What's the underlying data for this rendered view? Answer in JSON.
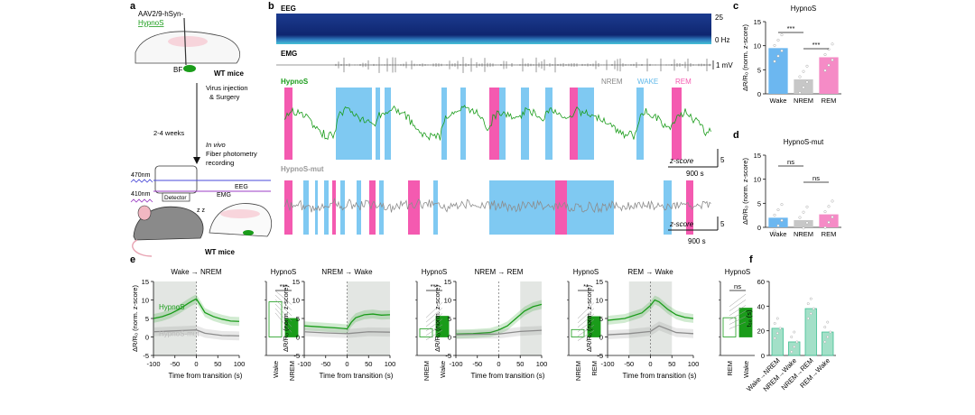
{
  "panel_letters": {
    "a": "a",
    "b": "b",
    "c": "c",
    "d": "d",
    "e": "e",
    "f": "f"
  },
  "panel_a": {
    "virus": "AAV2/9-hSyn-",
    "sensor": "HypnoS",
    "region": "BF",
    "mouse_top": "WT mice",
    "step1": "Virus injection",
    "step1b": "& Surgery",
    "duration": "2-4 weeks",
    "invivo": "In vivo",
    "fp1": "Fiber photometry",
    "fp2": "recording",
    "laser1": "470nm",
    "laser2": "410nm",
    "detector": "Detector",
    "eeg": "EEG",
    "emg": "EMG",
    "zz": "z z",
    "mouse_bottom": "WT mice"
  },
  "panel_b": {
    "eeg_label": "EEG",
    "eeg_top": "25",
    "eeg_bottom": "0 Hz",
    "emg_label": "EMG",
    "emg_scale": "1 mV",
    "hypnos_label": "HypnoS",
    "mut_label": "HypnoS-mut",
    "legend": [
      "NREM",
      "WAKE",
      "REM"
    ],
    "zscore": "z-score",
    "zscale": "5",
    "tscale": "900 s",
    "zscore2": "z-score",
    "zscale2": "5",
    "tscale2": "900 s"
  },
  "colors": {
    "wake": "#7fc9f2",
    "nrem": "#c7c7c7",
    "rem": "#f45ab0",
    "green": "#1a9c1a",
    "gray": "#8c8c8c",
    "wake_bar": "#6cb7f0",
    "rem_bar": "#f58bc6",
    "f_bar": "#a3e0c8",
    "f_edge": "#3fbf93"
  },
  "chart_data": [
    {
      "type": "bar",
      "panel": "c",
      "title": "HypnoS",
      "categories": [
        "Wake",
        "NREM",
        "REM"
      ],
      "values": [
        9.5,
        3.0,
        7.6
      ],
      "ylabel": "ΔR/R₀ (norm. z-score)",
      "ylim": [
        0,
        15
      ],
      "yticks": [
        "0",
        "5",
        "10",
        "15"
      ],
      "significance": [
        "***",
        "***"
      ]
    },
    {
      "type": "bar",
      "panel": "d",
      "title": "HypnoS-mut",
      "categories": [
        "Wake",
        "NREM",
        "REM"
      ],
      "values": [
        2.0,
        1.5,
        2.7
      ],
      "ylabel": "ΔR/R₀ (norm. z-score)",
      "ylim": [
        0,
        15
      ],
      "yticks": [
        "0",
        "5",
        "10",
        "15"
      ],
      "significance": [
        "ns",
        "ns"
      ]
    },
    {
      "type": "line",
      "panel": "e1",
      "title": "Wake → NREM",
      "xlabel": "Time from transition (s)",
      "ylabel": "ΔR/R₀ (norm. z-score)",
      "xlim": [
        -100,
        100
      ],
      "ylim": [
        -5,
        15
      ],
      "xticks": [
        "-100",
        "-50",
        "0",
        "50",
        "100"
      ],
      "yticks": [
        "-5",
        "0",
        "5",
        "10",
        "15"
      ],
      "series": [
        {
          "name": "HypnoS",
          "x": [
            -100,
            -80,
            -60,
            -40,
            -20,
            -10,
            0,
            10,
            20,
            40,
            60,
            80,
            100
          ],
          "y": [
            5,
            5.5,
            6.3,
            7.5,
            9,
            9.7,
            10.3,
            8.5,
            6.6,
            5.5,
            4.8,
            4.3,
            4.2
          ]
        },
        {
          "name": "HypnoS-mut",
          "x": [
            -100,
            -60,
            -20,
            0,
            20,
            60,
            100
          ],
          "y": [
            1.4,
            1.6,
            1.8,
            1.9,
            1.0,
            0.4,
            0.3
          ]
        }
      ],
      "bar": {
        "title": "HypnoS",
        "categories": [
          "Wake",
          "NREM"
        ],
        "values": [
          9.5,
          5.0
        ],
        "significance": "***"
      }
    },
    {
      "type": "line",
      "panel": "e2",
      "title": "NREM → Wake",
      "xlabel": "Time from transition (s)",
      "ylabel": "ΔR/R₀ (norm. z-score)",
      "xlim": [
        -100,
        100
      ],
      "ylim": [
        -5,
        15
      ],
      "xticks": [
        "-100",
        "-50",
        "0",
        "50",
        "100"
      ],
      "yticks": [
        "-5",
        "0",
        "5",
        "10",
        "15"
      ],
      "series": [
        {
          "name": "HypnoS",
          "x": [
            -100,
            -60,
            -20,
            0,
            10,
            20,
            40,
            60,
            80,
            100
          ],
          "y": [
            3,
            2.7,
            2.4,
            2.2,
            4.0,
            5.2,
            6.0,
            6.2,
            5.9,
            6.0
          ]
        },
        {
          "name": "HypnoS-mut",
          "x": [
            -100,
            -50,
            0,
            50,
            100
          ],
          "y": [
            1.4,
            1.1,
            0.9,
            1.4,
            1.3
          ]
        }
      ],
      "bar": {
        "title": "HypnoS",
        "categories": [
          "NREM",
          "Wake"
        ],
        "values": [
          2.2,
          5.6
        ],
        "significance": "***"
      }
    },
    {
      "type": "line",
      "panel": "e3",
      "title": "NREM → REM",
      "xlabel": "Time from transition (s)",
      "ylabel": "ΔR/R₀ (norm. z-score)",
      "xlim": [
        -100,
        100
      ],
      "ylim": [
        -5,
        15
      ],
      "xticks": [
        "-100",
        "-50",
        "0",
        "50",
        "100"
      ],
      "yticks": [
        "-5",
        "0",
        "5",
        "10",
        "15"
      ],
      "series": [
        {
          "name": "HypnoS",
          "x": [
            -100,
            -60,
            -20,
            0,
            20,
            40,
            60,
            80,
            100
          ],
          "y": [
            0.8,
            0.9,
            1.2,
            1.9,
            3.0,
            5.0,
            7.0,
            8.2,
            8.8
          ]
        },
        {
          "name": "HypnoS-mut",
          "x": [
            -100,
            -50,
            0,
            50,
            100
          ],
          "y": [
            0.6,
            0.7,
            0.8,
            1.5,
            1.8
          ]
        }
      ],
      "bar": {
        "title": "HypnoS",
        "categories": [
          "NREM",
          "REM"
        ],
        "values": [
          2.0,
          5.5
        ],
        "significance": "**"
      }
    },
    {
      "type": "line",
      "panel": "e4",
      "title": "REM → Wake",
      "xlabel": "Time from transition (s)",
      "ylabel": "ΔR/R₀ (norm. z-score)",
      "xlim": [
        -100,
        100
      ],
      "ylim": [
        -5,
        15
      ],
      "xticks": [
        "-100",
        "-50",
        "0",
        "50",
        "100"
      ],
      "yticks": [
        "-5",
        "0",
        "5",
        "10",
        "15"
      ],
      "series": [
        {
          "name": "HypnoS",
          "x": [
            -100,
            -60,
            -20,
            0,
            10,
            20,
            40,
            60,
            80,
            100
          ],
          "y": [
            4.5,
            5.0,
            6.5,
            8.5,
            10.0,
            9.5,
            7.5,
            6.0,
            5.3,
            5.0
          ]
        },
        {
          "name": "HypnoS-mut",
          "x": [
            -100,
            -50,
            0,
            20,
            60,
            100
          ],
          "y": [
            0.6,
            0.9,
            1.5,
            3.0,
            1.2,
            0.9
          ]
        }
      ],
      "bar": {
        "title": "HypnoS",
        "categories": [
          "REM",
          "Wake"
        ],
        "values": [
          5.2,
          7.8
        ],
        "significance": "ns"
      }
    },
    {
      "type": "bar",
      "panel": "f",
      "categories": [
        "Wake→NREM",
        "NREM→Wake",
        "NREM→REM",
        "REM→Wake"
      ],
      "values": [
        22,
        11,
        38,
        19
      ],
      "ylabel": "t₅₀ (s)",
      "ylim": [
        0,
        60
      ],
      "yticks": [
        "0",
        "20",
        "40",
        "60"
      ]
    }
  ]
}
